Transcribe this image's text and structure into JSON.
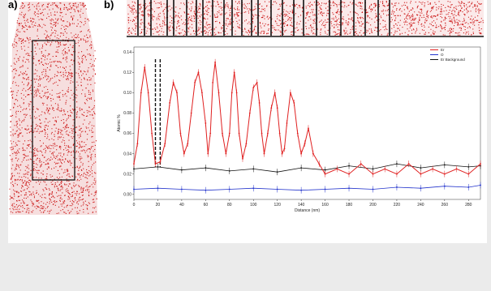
{
  "panels": {
    "a_label": "a)",
    "b_label": "b)"
  },
  "colors": {
    "atoms": "#cc1a1a",
    "er": "#e02020",
    "o": "#2233cc",
    "er_background": "#111111",
    "panel_bg": "#ffffff",
    "page_bg": "#ebebeb"
  },
  "chart_data": {
    "type": "line",
    "title": "",
    "xlabel": "Distance (nm)",
    "ylabel": "Atomic %",
    "xlim": [
      0,
      290
    ],
    "ylim": [
      -0.005,
      0.145
    ],
    "xticks": [
      0,
      20,
      40,
      60,
      80,
      100,
      120,
      140,
      160,
      180,
      200,
      220,
      240,
      260,
      280
    ],
    "yticks": [
      0.0,
      0.02,
      0.04,
      0.06,
      0.08,
      0.1,
      0.12,
      0.14
    ],
    "ytick_labels": [
      "0.00",
      "0.02",
      "0.04",
      "0.06",
      "0.08",
      "0.10",
      "0.12",
      "0.14"
    ],
    "legend_position": "top-right",
    "dashed_marker_x": [
      18,
      22
    ],
    "series": [
      {
        "name": "Er",
        "x": [
          0,
          3,
          6,
          9,
          12,
          15,
          18,
          22,
          26,
          30,
          33,
          36,
          39,
          42,
          45,
          48,
          51,
          54,
          57,
          60,
          62,
          64,
          66,
          68,
          71,
          74,
          77,
          80,
          82,
          84,
          86,
          88,
          91,
          94,
          97,
          100,
          103,
          105,
          107,
          109,
          112,
          115,
          118,
          120,
          122,
          124,
          126,
          128,
          131,
          134,
          137,
          140,
          143,
          146,
          150,
          155,
          160,
          170,
          180,
          190,
          200,
          210,
          220,
          230,
          240,
          250,
          260,
          270,
          280,
          290
        ],
        "y": [
          0.03,
          0.05,
          0.1,
          0.125,
          0.1,
          0.06,
          0.03,
          0.032,
          0.05,
          0.09,
          0.11,
          0.1,
          0.06,
          0.04,
          0.05,
          0.08,
          0.11,
          0.12,
          0.1,
          0.07,
          0.04,
          0.06,
          0.11,
          0.13,
          0.1,
          0.06,
          0.04,
          0.06,
          0.1,
          0.12,
          0.1,
          0.06,
          0.035,
          0.05,
          0.08,
          0.105,
          0.11,
          0.09,
          0.06,
          0.04,
          0.06,
          0.085,
          0.1,
          0.085,
          0.06,
          0.04,
          0.045,
          0.07,
          0.1,
          0.09,
          0.06,
          0.04,
          0.05,
          0.065,
          0.04,
          0.03,
          0.02,
          0.025,
          0.02,
          0.03,
          0.02,
          0.025,
          0.02,
          0.03,
          0.02,
          0.025,
          0.02,
          0.025,
          0.02,
          0.03
        ]
      },
      {
        "name": "O",
        "x": [
          0,
          20,
          40,
          60,
          80,
          100,
          120,
          140,
          160,
          180,
          200,
          220,
          240,
          260,
          280,
          290
        ],
        "y": [
          0.005,
          0.006,
          0.005,
          0.004,
          0.005,
          0.006,
          0.005,
          0.004,
          0.005,
          0.006,
          0.005,
          0.007,
          0.006,
          0.008,
          0.007,
          0.009
        ]
      },
      {
        "name": "Er Background",
        "x": [
          0,
          20,
          40,
          60,
          80,
          100,
          120,
          140,
          160,
          180,
          200,
          220,
          240,
          260,
          280,
          290
        ],
        "y": [
          0.025,
          0.027,
          0.024,
          0.026,
          0.023,
          0.025,
          0.022,
          0.026,
          0.024,
          0.028,
          0.025,
          0.03,
          0.026,
          0.029,
          0.027,
          0.028
        ]
      }
    ]
  }
}
